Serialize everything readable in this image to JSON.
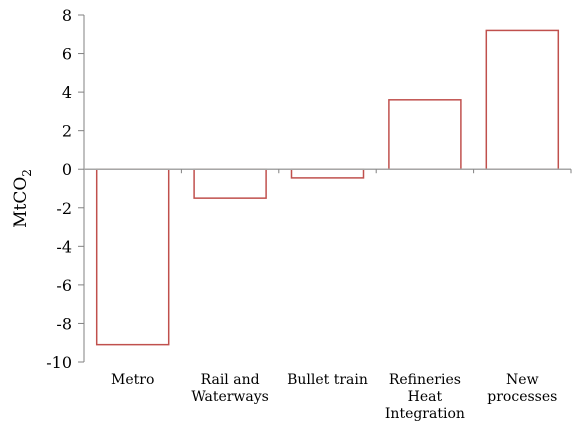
{
  "chart_data": {
    "type": "bar",
    "categories": [
      [
        "Metro"
      ],
      [
        "Rail and",
        "Waterways"
      ],
      [
        "Bullet train"
      ],
      [
        "Refineries",
        "Heat",
        "Integration"
      ],
      [
        "New",
        "processes"
      ]
    ],
    "values": [
      -9.1,
      -1.5,
      -0.45,
      3.6,
      7.2
    ],
    "ylabel": "MtCO",
    "ylabel_subscript": "2",
    "ylim": [
      -10,
      8
    ],
    "yticks": [
      8,
      6,
      4,
      2,
      0,
      -2,
      -4,
      -6,
      -8,
      -10
    ],
    "ytick_labels": [
      "8",
      "6",
      "4",
      "2",
      "0",
      "-2",
      "-4",
      "-6",
      "-8",
      "-10"
    ],
    "bar_style": "outline",
    "bar_color": "#c0504d",
    "zero_line_color": "#a6a6a6",
    "axis_color": "#808080",
    "grid": false,
    "legend": "none"
  }
}
